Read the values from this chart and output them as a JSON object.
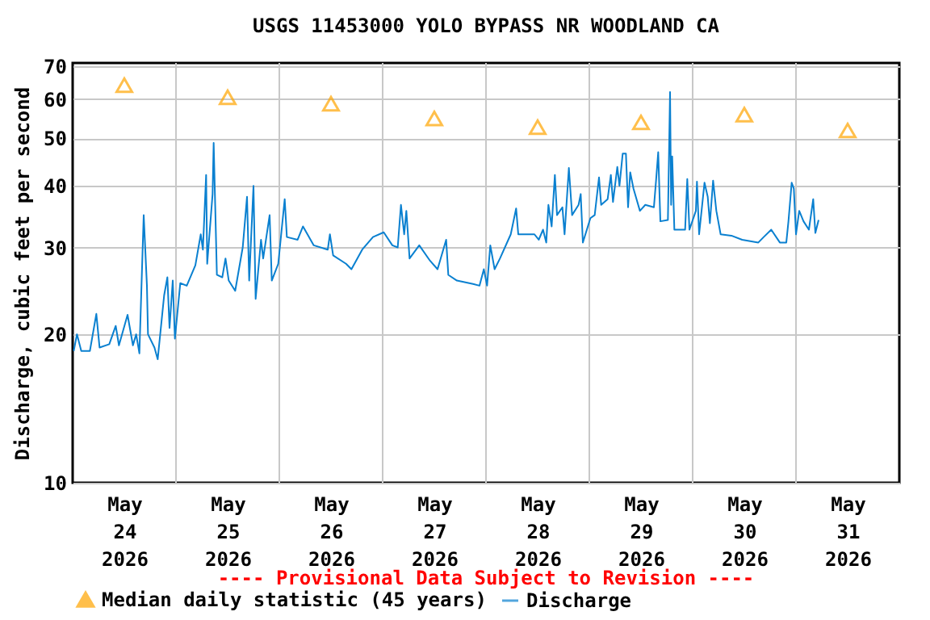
{
  "chart_data": {
    "type": "line",
    "title": "USGS 11453000 YOLO BYPASS NR WOODLAND CA",
    "ylabel": "Discharge, cubic feet per second",
    "log": "y",
    "grid": true,
    "legend": "bottom",
    "annotations": [
      "---- Provisional Data Subject to Revision ----"
    ],
    "xlim": [
      "2026-05-24T00:00",
      "2026-06-01T00:00"
    ],
    "xticks": [
      {
        "value": "2026-05-24T12:00",
        "label": "May 24 2026"
      },
      {
        "value": "2026-05-25T12:00",
        "label": "May 25 2026"
      },
      {
        "value": "2026-05-26T12:00",
        "label": "May 26 2026"
      },
      {
        "value": "2026-05-27T12:00",
        "label": "May 27 2026"
      },
      {
        "value": "2026-05-28T12:00",
        "label": "May 28 2026"
      },
      {
        "value": "2026-05-29T12:00",
        "label": "May 29 2026"
      },
      {
        "value": "2026-05-30T12:00",
        "label": "May 30 2026"
      },
      {
        "value": "2026-05-31T12:00",
        "label": "May 31 2026"
      },
      {
        "value": "2026-05-25T00:00",
        "label": null
      },
      {
        "value": "2026-05-26T00:00",
        "label": null
      },
      {
        "value": "2026-05-27T00:00",
        "label": null
      },
      {
        "value": "2026-05-28T00:00",
        "label": null
      },
      {
        "value": "2026-05-29T00:00",
        "label": null
      },
      {
        "value": "2026-05-30T00:00",
        "label": null
      },
      {
        "value": "2026-05-31T00:00",
        "label": null
      }
    ],
    "ylim": [
      10,
      71
    ],
    "yticks": [
      10,
      20,
      30,
      40,
      50,
      60,
      70
    ],
    "series": [
      {
        "name": "Median daily statistic (45 years)",
        "type": "scatter",
        "marker": "triangle",
        "color": "#ffa500",
        "x": [
          "2026-05-24T12:00",
          "2026-05-25T12:00",
          "2026-05-26T12:00",
          "2026-05-27T12:00",
          "2026-05-28T12:00",
          "2026-05-29T12:00",
          "2026-05-30T12:00",
          "2026-05-31T12:00"
        ],
        "values": [
          64,
          60.5,
          58.7,
          54.8,
          52.6,
          53.8,
          55.8,
          51.8
        ]
      },
      {
        "name": "Discharge",
        "color": "#0a80d0",
        "x": [
          "2026-05-24T00:15",
          "2026-05-24T01:00",
          "2026-05-24T02:00",
          "2026-05-24T04:00",
          "2026-05-24T05:30",
          "2026-05-24T06:15",
          "2026-05-24T08:30",
          "2026-05-24T10:00",
          "2026-05-24T10:45",
          "2026-05-24T12:45",
          "2026-05-24T14:00",
          "2026-05-24T14:45",
          "2026-05-24T15:30",
          "2026-05-24T16:30",
          "2026-05-24T17:15",
          "2026-05-24T17:30",
          "2026-05-24T19:00",
          "2026-05-24T19:45",
          "2026-05-24T21:15",
          "2026-05-24T22:00",
          "2026-05-24T22:30",
          "2026-05-24T23:15",
          "2026-05-24T23:45",
          "2026-05-25T01:00",
          "2026-05-25T02:30",
          "2026-05-25T04:30",
          "2026-05-25T05:45",
          "2026-05-25T06:15",
          "2026-05-25T07:00",
          "2026-05-25T07:15",
          "2026-05-25T08:30",
          "2026-05-25T08:45",
          "2026-05-25T09:30",
          "2026-05-25T10:45",
          "2026-05-25T11:30",
          "2026-05-25T12:15",
          "2026-05-25T13:45",
          "2026-05-25T15:30",
          "2026-05-25T16:30",
          "2026-05-25T17:00",
          "2026-05-25T18:00",
          "2026-05-25T18:30",
          "2026-05-25T19:45",
          "2026-05-25T20:15",
          "2026-05-25T21:45",
          "2026-05-25T22:15",
          "2026-05-25T23:45",
          "2026-05-26T01:15",
          "2026-05-26T01:45",
          "2026-05-26T04:15",
          "2026-05-26T05:30",
          "2026-05-26T08:00",
          "2026-05-26T11:15",
          "2026-05-26T11:45",
          "2026-05-26T12:30",
          "2026-05-26T15:30",
          "2026-05-26T16:45",
          "2026-05-26T19:15",
          "2026-05-26T21:45",
          "2026-05-27T00:15",
          "2026-05-27T02:15",
          "2026-05-27T03:30",
          "2026-05-27T04:15",
          "2026-05-27T05:00",
          "2026-05-27T05:30",
          "2026-05-27T06:15",
          "2026-05-27T08:30",
          "2026-05-27T11:00",
          "2026-05-27T12:45",
          "2026-05-27T14:45",
          "2026-05-27T15:15",
          "2026-05-27T17:15",
          "2026-05-27T21:00",
          "2026-05-27T22:30",
          "2026-05-27T23:30",
          "2026-05-28T00:15",
          "2026-05-28T01:00",
          "2026-05-28T02:00",
          "2026-05-28T03:15",
          "2026-05-28T05:45",
          "2026-05-28T07:00",
          "2026-05-28T07:30",
          "2026-05-28T11:15",
          "2026-05-28T12:15",
          "2026-05-28T13:15",
          "2026-05-28T14:00",
          "2026-05-28T14:30",
          "2026-05-28T15:15",
          "2026-05-28T16:00",
          "2026-05-28T16:30",
          "2026-05-28T17:45",
          "2026-05-28T18:15",
          "2026-05-28T19:15",
          "2026-05-28T20:00",
          "2026-05-28T21:30",
          "2026-05-28T22:00",
          "2026-05-28T22:30",
          "2026-05-29T00:15",
          "2026-05-29T01:15",
          "2026-05-29T02:15",
          "2026-05-29T02:45",
          "2026-05-29T04:15",
          "2026-05-29T05:00",
          "2026-05-29T05:30",
          "2026-05-29T06:30",
          "2026-05-29T07:00",
          "2026-05-29T07:45",
          "2026-05-29T08:30",
          "2026-05-29T09:00",
          "2026-05-29T09:30",
          "2026-05-29T10:15",
          "2026-05-29T11:45",
          "2026-05-29T13:00",
          "2026-05-29T15:00",
          "2026-05-29T15:30",
          "2026-05-29T16:00",
          "2026-05-29T16:30",
          "2026-05-29T18:15",
          "2026-05-29T18:45",
          "2026-05-29T19:00",
          "2026-05-29T19:15",
          "2026-05-29T19:45",
          "2026-05-29T22:15",
          "2026-05-29T22:45",
          "2026-05-29T23:15",
          "2026-05-30T00:45",
          "2026-05-30T01:00",
          "2026-05-30T01:30",
          "2026-05-30T02:45",
          "2026-05-30T03:30",
          "2026-05-30T04:00",
          "2026-05-30T04:45",
          "2026-05-30T05:30",
          "2026-05-30T06:30",
          "2026-05-30T09:00",
          "2026-05-30T11:30",
          "2026-05-30T15:15",
          "2026-05-30T16:30",
          "2026-05-30T18:15",
          "2026-05-30T20:15",
          "2026-05-30T21:45",
          "2026-05-30T22:15",
          "2026-05-30T23:00",
          "2026-05-30T23:30",
          "2026-05-31T00:00",
          "2026-05-31T00:45",
          "2026-05-31T01:45",
          "2026-05-31T03:00",
          "2026-05-31T04:00",
          "2026-05-31T04:30",
          "2026-05-31T05:15"
        ],
        "values": [
          18.5,
          20.0,
          18.5,
          18.5,
          22.0,
          18.8,
          19.1,
          20.8,
          19.0,
          21.9,
          19.0,
          20.0,
          18.3,
          34.9,
          25.1,
          20.0,
          18.8,
          17.8,
          24.0,
          26.1,
          20.6,
          25.7,
          19.6,
          25.4,
          25.1,
          27.6,
          31.9,
          29.7,
          42.1,
          27.8,
          38.5,
          48.9,
          26.4,
          26.1,
          28.5,
          25.7,
          24.5,
          30.0,
          38.0,
          25.7,
          40.0,
          23.6,
          31.1,
          28.5,
          34.9,
          25.7,
          27.8,
          37.6,
          31.5,
          31.1,
          33.1,
          30.3,
          29.7,
          31.9,
          28.9,
          27.8,
          27.1,
          29.7,
          31.5,
          32.2,
          30.3,
          30.0,
          36.6,
          31.9,
          35.6,
          28.5,
          30.3,
          28.2,
          27.1,
          31.1,
          26.4,
          25.7,
          25.3,
          25.1,
          27.1,
          25.1,
          30.3,
          27.1,
          28.5,
          31.9,
          36.0,
          31.9,
          31.9,
          31.1,
          32.6,
          30.7,
          36.6,
          33.1,
          42.1,
          34.9,
          36.2,
          31.9,
          43.5,
          34.9,
          36.6,
          38.5,
          30.7,
          34.4,
          34.9,
          41.6,
          36.6,
          37.6,
          42.1,
          37.1,
          43.7,
          40.0,
          46.5,
          46.5,
          36.2,
          42.6,
          39.5,
          35.6,
          36.6,
          36.2,
          41.0,
          46.8,
          33.9,
          34.1,
          62.0,
          36.6,
          45.9,
          32.6,
          32.6,
          41.3,
          32.6,
          35.6,
          40.8,
          31.9,
          40.6,
          38.0,
          33.6,
          41.0,
          35.6,
          31.9,
          31.7,
          31.1,
          30.7,
          31.5,
          32.6,
          30.7,
          30.7,
          33.9,
          40.6,
          39.5,
          31.9,
          35.6,
          33.9,
          32.6,
          37.6,
          32.1,
          34.1
        ]
      }
    ]
  }
}
